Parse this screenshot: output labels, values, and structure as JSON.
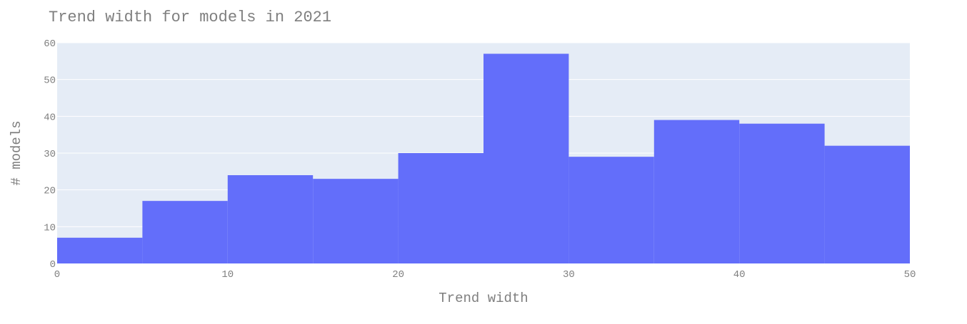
{
  "chart_data": {
    "type": "bar",
    "title": "Trend width for models in 2021",
    "xlabel": "Trend width",
    "ylabel": "# models",
    "bins": [
      {
        "x0": 0,
        "x1": 5,
        "value": 7
      },
      {
        "x0": 5,
        "x1": 10,
        "value": 17
      },
      {
        "x0": 10,
        "x1": 15,
        "value": 24
      },
      {
        "x0": 15,
        "x1": 20,
        "value": 23
      },
      {
        "x0": 20,
        "x1": 25,
        "value": 30
      },
      {
        "x0": 25,
        "x1": 30,
        "value": 57
      },
      {
        "x0": 30,
        "x1": 35,
        "value": 29
      },
      {
        "x0": 35,
        "x1": 40,
        "value": 39
      },
      {
        "x0": 40,
        "x1": 45,
        "value": 38
      },
      {
        "x0": 45,
        "x1": 50,
        "value": 32
      }
    ],
    "xlim": [
      0,
      50
    ],
    "ylim": [
      0,
      60
    ],
    "x_ticks": [
      "0",
      "10",
      "20",
      "30",
      "40",
      "50"
    ],
    "y_ticks": [
      "0",
      "10",
      "20",
      "30",
      "40",
      "50",
      "60"
    ],
    "grid": true,
    "colors": {
      "bar": "#636efa",
      "plot_bg": "#e5ecf6",
      "gridline": "#ffffff",
      "text": "#7f7f7f"
    }
  }
}
